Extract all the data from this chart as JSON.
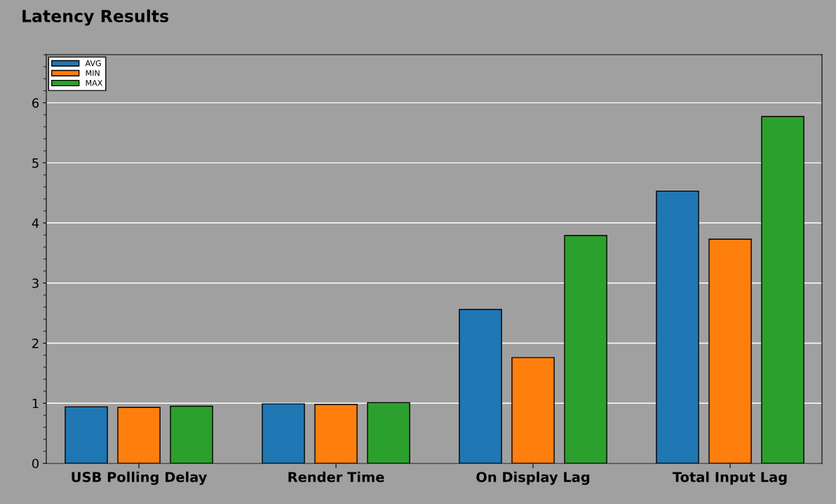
{
  "chart_data": {
    "type": "bar",
    "title": "Latency Results",
    "categories": [
      "USB Polling Delay",
      "Render Time",
      "On Display Lag",
      "Total Input Lag"
    ],
    "series": [
      {
        "name": "AVG",
        "color": "#1f77b4",
        "values": [
          0.94,
          0.99,
          2.56,
          4.53
        ]
      },
      {
        "name": "MIN",
        "color": "#ff7f0e",
        "values": [
          0.93,
          0.98,
          1.76,
          3.73
        ]
      },
      {
        "name": "MAX",
        "color": "#2ca02c",
        "values": [
          0.95,
          1.01,
          3.79,
          5.77
        ]
      }
    ],
    "ylim": [
      0,
      6.8
    ],
    "yticks": [
      0,
      1,
      2,
      3,
      4,
      5,
      6
    ],
    "grid": "y",
    "legend": "top left"
  }
}
